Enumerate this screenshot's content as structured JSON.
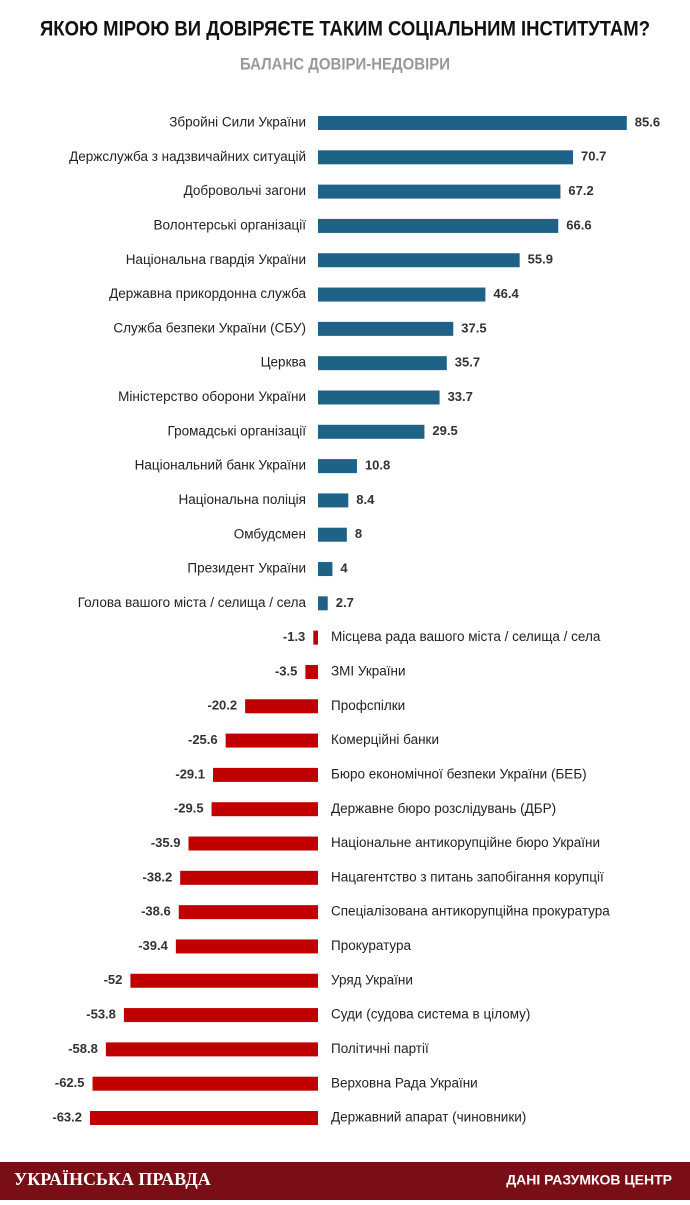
{
  "chart_data": {
    "type": "diverging-bar",
    "title": "ЯКОЮ МІРОЮ ВИ ДОВІРЯЄТЕ ТАКИМ СОЦІАЛЬНИМ ІНСТИТУТАМ?",
    "subtitle": "БАЛАНС ДОВІРИ-НЕДОВІРИ",
    "categories": [
      "Збройні Сили України",
      "Держслужба з надзвичайних ситуацій",
      "Добровольчі загони",
      "Волонтерські організації",
      "Національна гвардія України",
      "Державна прикордонна служба",
      "Служба безпеки України (СБУ)",
      "Церква",
      "Міністерство оборони України",
      "Громадські організації",
      "Національний банк України",
      "Національна поліція",
      "Омбудсмен",
      "Президент України",
      "Голова вашого міста / селища / села",
      "Місцева рада вашого міста / селища / села",
      "ЗМІ України",
      "Профспілки",
      "Комерційні банки",
      "Бюро економічної безпеки України (БЕБ)",
      "Державне бюро розслідувань (ДБР)",
      "Національне антикорупційне бюро України",
      "Нацагентство з питань запобігання корупції",
      "Спеціалізована антикорупційна прокуратура",
      "Прокуратура",
      "Уряд України",
      "Суди (судова система в цілому)",
      "Політичні партії",
      "Верховна Рада України",
      "Державний апарат (чиновники)"
    ],
    "values": [
      85.6,
      70.7,
      67.2,
      66.6,
      55.9,
      46.4,
      37.5,
      35.7,
      33.7,
      29.5,
      10.8,
      8.4,
      8,
      4,
      2.7,
      -1.3,
      -3.5,
      -20.2,
      -25.6,
      -29.1,
      -29.5,
      -35.9,
      -38.2,
      -38.6,
      -39.4,
      -52,
      -53.8,
      -58.8,
      -62.5,
      -63.2
    ],
    "positive_color": "#1f6288",
    "negative_color": "#c00000"
  },
  "footer": {
    "left": "УКРАЇНСЬКА ПРАВДА",
    "right": "ДАНІ РАЗУМКОВ ЦЕНТР"
  }
}
